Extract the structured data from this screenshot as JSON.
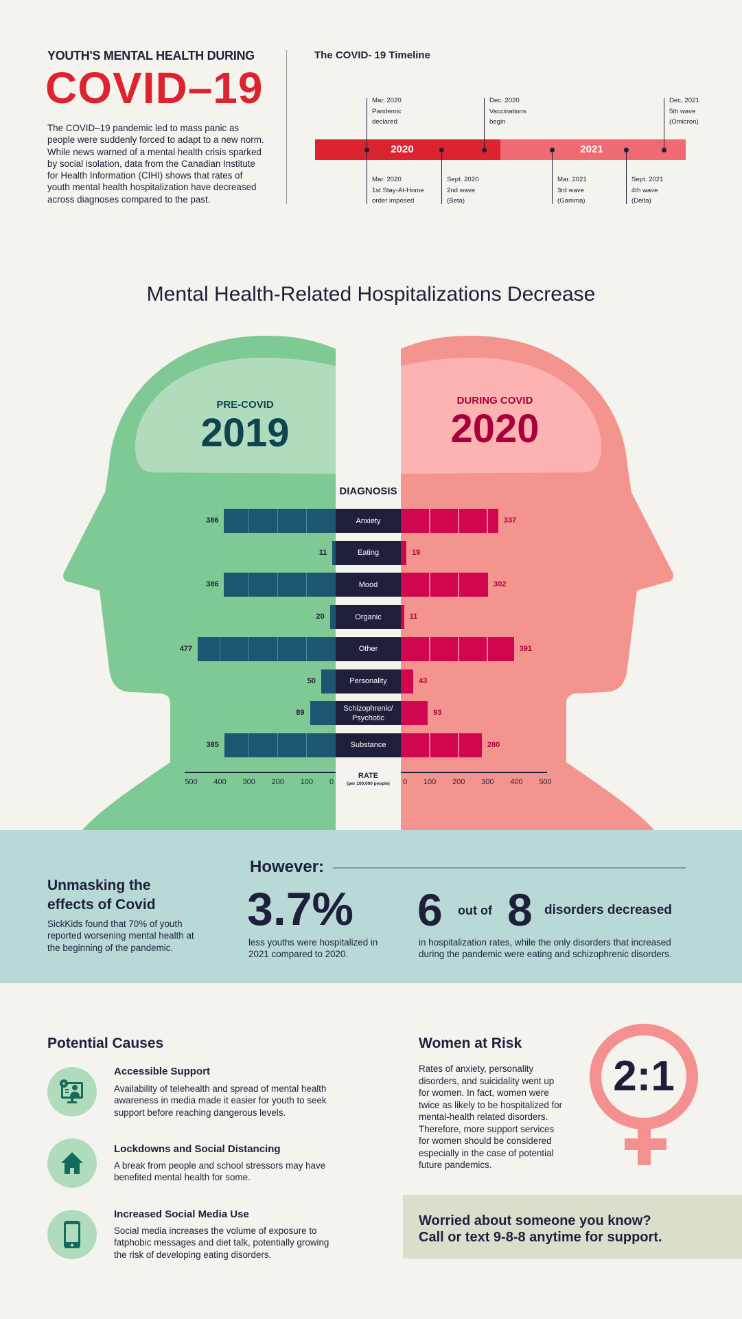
{
  "header": {
    "subtitle": "YOUTH'S MENTAL HEALTH DURING",
    "title": "COVID–19",
    "intro": "The COVID–19 pandemic led to mass panic as people were suddenly forced to adapt to a new norm. While news warned of a mental health crisis sparked by social isolation, data from the Canadian Institute for Health Information (CIHI) shows that rates of youth mental health hospitalization have decreased across diagnoses compared to the past."
  },
  "timeline": {
    "title": "The COVID- 19 Timeline",
    "years": [
      "2020",
      "2021"
    ],
    "colors": {
      "y2020": "#dc2430",
      "y2021": "#f06a73"
    },
    "events": [
      {
        "date": "Mar. 2020",
        "l1": "Pandemic",
        "l2": "declared"
      },
      {
        "date": "Mar. 2020",
        "l1": "1st Stay-At-Home",
        "l2": "order imposed"
      },
      {
        "date": "Sept. 2020",
        "l1": "2nd wave",
        "l2": "(Beta)"
      },
      {
        "date": "Dec. 2020",
        "l1": "Vaccinations",
        "l2": "begin"
      },
      {
        "date": "Mar. 2021",
        "l1": "3rd wave",
        "l2": "(Gamma)"
      },
      {
        "date": "Sept. 2021",
        "l1": "4th wave",
        "l2": "(Delta)"
      },
      {
        "date": "Dec. 2021",
        "l1": "5th wave",
        "l2": "(Omicron)"
      }
    ]
  },
  "chart_data": {
    "type": "bar",
    "title": "Mental Health-Related Hospitalizations Decrease",
    "category_header": "DIAGNOSIS",
    "xlabel": "RATE",
    "xlabel_sub": "(per 100,000 people)",
    "xlim": [
      0,
      500
    ],
    "ticks": [
      0,
      100,
      200,
      300,
      400,
      500
    ],
    "categories": [
      "Anxiety",
      "Eating",
      "Mood",
      "Organic",
      "Other",
      "Personality",
      "Schizophrenic/ Psychotic",
      "Substance"
    ],
    "series": [
      {
        "name": "PRE-COVID",
        "year": "2019",
        "color": "#1c5670",
        "values": [
          386,
          11,
          386,
          20,
          477,
          50,
          89,
          385
        ]
      },
      {
        "name": "DURING COVID",
        "year": "2020",
        "color": "#d1064f",
        "values": [
          337,
          19,
          302,
          11,
          391,
          43,
          93,
          280
        ]
      }
    ]
  },
  "however": {
    "side_title_1": "Unmasking the",
    "side_title_2": "effects of Covid",
    "side_text": "SickKids found that 70% of youth reported worsening mental health at the beginning of the pandemic.",
    "label": "However:",
    "stat1": "3.7%",
    "stat1_text": "less youths were hospitalized in 2021 compared to 2020.",
    "stat2_a": "6",
    "stat2_mid": "out of",
    "stat2_b": "8",
    "stat2_tail": "disorders decreased",
    "stat2_text": "in hospitalization rates, while the only disorders that increased during the pandemic were eating and schizophrenic disorders."
  },
  "causes": {
    "title": "Potential Causes",
    "items": [
      {
        "icon": "telehealth-icon",
        "title": "Accessible Support",
        "text": "Availability of telehealth and spread of mental health awareness in media made it easier for youth to seek support before reaching dangerous levels."
      },
      {
        "icon": "house-icon",
        "title": "Lockdowns and Social Distancing",
        "text": "A break from people and school stressors may have benefited mental health for some."
      },
      {
        "icon": "smartphone-icon",
        "title": "Increased Social Media Use",
        "text": "Social media increases the volume of exposure to fatphobic messages and diet talk, potentially growing the risk of developing eating disorders."
      }
    ]
  },
  "women": {
    "title": "Women at Risk",
    "text": "Rates of anxiety, personality disorders, and suicidality went up for women. In fact, women were twice as likely to be hospitalized for mental-health related disorders. Therefore, more support services for women should be considered especially in the case of potential future pandemics.",
    "ratio": "2:1"
  },
  "help": {
    "line1": "Worried about someone you know?",
    "line2": "Call or text 9-8-8 anytime for support."
  }
}
